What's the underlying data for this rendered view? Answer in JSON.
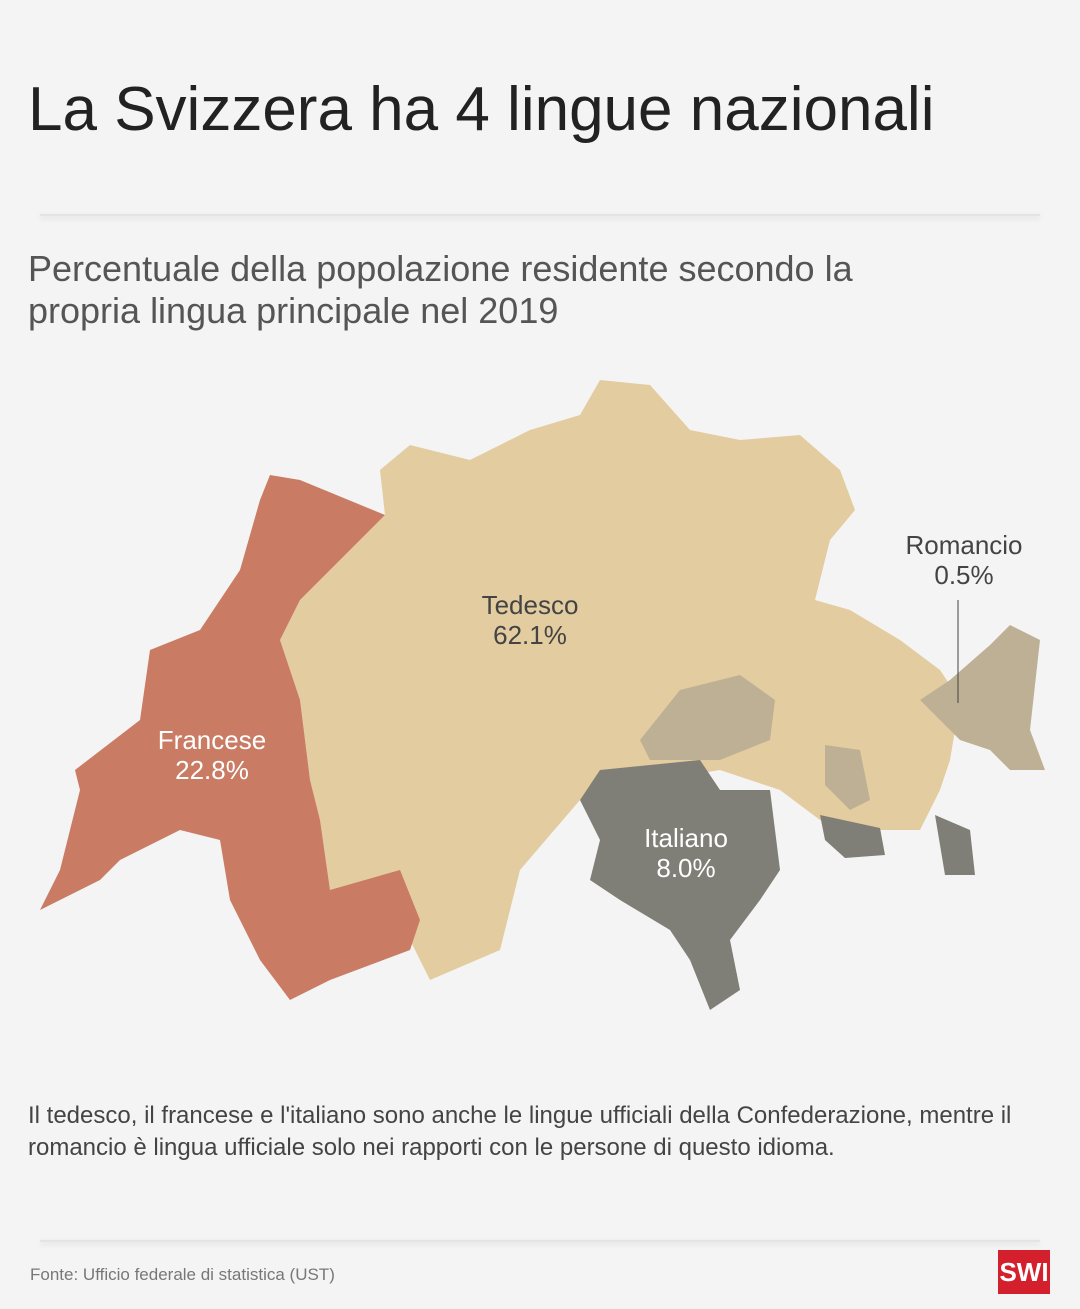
{
  "header": {
    "title": "La Svizzera ha 4 lingue nazionali",
    "subtitle": "Percentuale della popolazione residente secondo la propria lingua principale nel 2019"
  },
  "map": {
    "regions": [
      {
        "name": "Tedesco",
        "value": "62.1%",
        "color": "#e3cc9f"
      },
      {
        "name": "Francese",
        "value": "22.8%",
        "color": "#c97b64"
      },
      {
        "name": "Italiano",
        "value": "8.0%",
        "color": "#7f7f78"
      },
      {
        "name": "Romancio",
        "value": "0.5%",
        "color": "#bdb095"
      }
    ]
  },
  "note": "Il tedesco, il francese e l'italiano sono anche le lingue ufficiali della Confederazione, mentre il romancio è lingua ufficiale solo nei rapporti con le persone di questo idioma.",
  "footer": {
    "source": "Fonte: Ufficio federale di statistica (UST)",
    "logo": "SWI"
  }
}
